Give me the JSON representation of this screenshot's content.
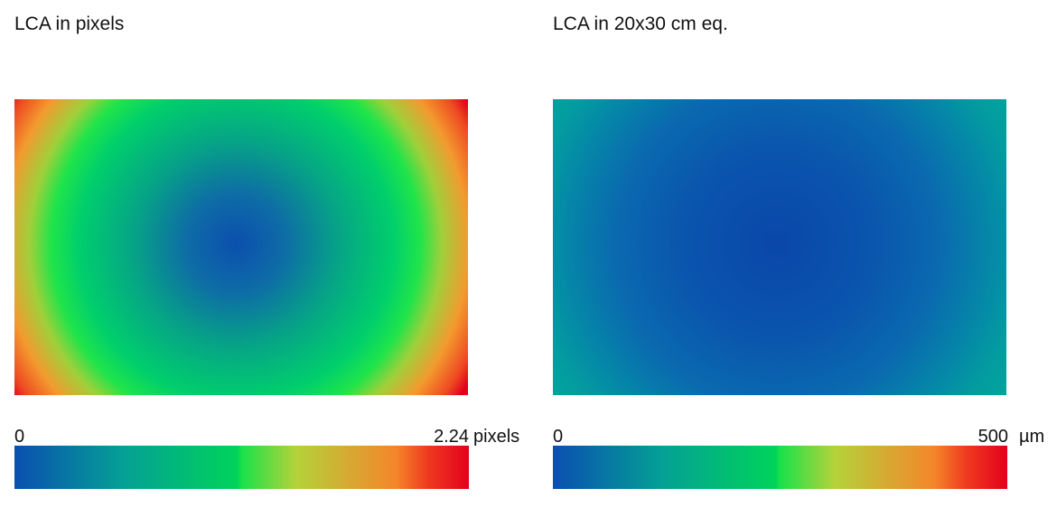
{
  "chart_data": [
    {
      "type": "heatmap",
      "title": "LCA in pixels",
      "colorbar": {
        "min_label": "0",
        "max_label": "2.24",
        "unit": "pixels",
        "min": 0,
        "max": 2.24,
        "colors": [
          "#0a4fb0",
          "#00d35a",
          "#f58a2a",
          "#e2001c"
        ]
      },
      "field": {
        "center_value": 0,
        "green_ring_value": 1.1,
        "corner_value": 2.24
      }
    },
    {
      "type": "heatmap",
      "title": "LCA in 20x30 cm eq.",
      "colorbar": {
        "min_label": "0",
        "max_label": "500",
        "unit": "µm",
        "min": 0,
        "max": 500,
        "colors": [
          "#0a4fb0",
          "#00d35a",
          "#f58a2a",
          "#e2001c"
        ]
      },
      "field": {
        "center_value": 0,
        "edge_value": 150,
        "corner_value": 180
      }
    }
  ]
}
